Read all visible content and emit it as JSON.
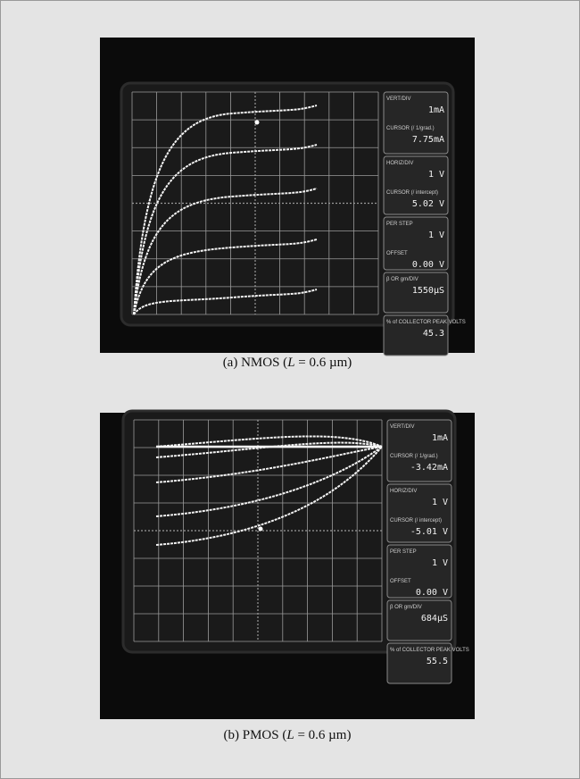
{
  "panels": [
    {
      "readout_boxes": [
        [
          {
            "label": "VERT/DIV",
            "value": "1mA"
          },
          {
            "label": "CURSOR (/ 1/grad.)",
            "value": "7.75mA"
          }
        ],
        [
          {
            "label": "HORIZ/DIV",
            "value": "1 V"
          },
          {
            "label": "CURSOR (/ intercept)",
            "value": "5.02 V"
          }
        ],
        [
          {
            "label": "PER STEP",
            "value": "1 V"
          },
          {
            "label": "OFFSET",
            "value": "0.00 V"
          }
        ],
        [
          {
            "label": "β OR gm/DIV",
            "value": "1550µS"
          }
        ],
        [
          {
            "label": "% of COLLECTOR PEAK VOLTS",
            "value": "45.3"
          }
        ]
      ],
      "caption": {
        "prefix": "(a)  NMOS  (",
        "symbol": "L",
        "suffix": " = 0.6 µm)"
      }
    },
    {
      "readout_boxes": [
        [
          {
            "label": "VERT/DIV",
            "value": "1mA"
          },
          {
            "label": "CURSOR (/ 1/grad.)",
            "value": "-3.42mA"
          }
        ],
        [
          {
            "label": "HORIZ/DIV",
            "value": "1 V"
          },
          {
            "label": "CURSOR (/ intercept)",
            "value": "-5.01 V"
          }
        ],
        [
          {
            "label": "PER STEP",
            "value": "1 V"
          },
          {
            "label": "OFFSET",
            "value": "0.00 V"
          }
        ],
        [
          {
            "label": "β OR gm/DIV",
            "value": "684µS"
          }
        ],
        [
          {
            "label": "% of COLLECTOR PEAK VOLTS",
            "value": "55.5"
          }
        ]
      ],
      "caption": {
        "prefix": "(b)  PMOS  (",
        "symbol": "L",
        "suffix": " = 0.6 µm)"
      }
    }
  ]
}
